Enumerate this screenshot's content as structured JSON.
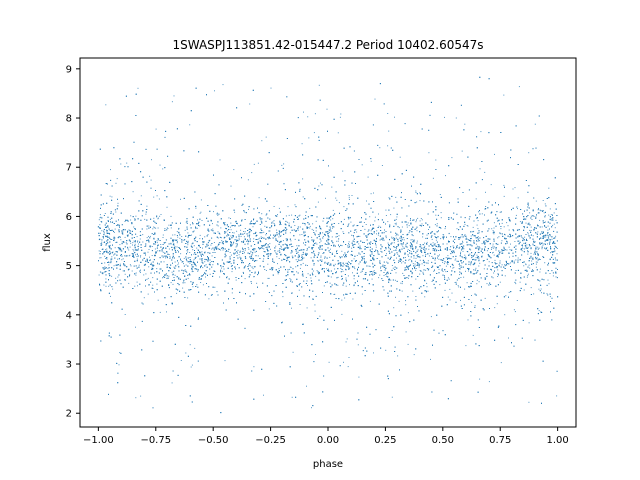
{
  "chart_data": {
    "type": "scatter",
    "title": "1SWASPJ113851.42-015447.2 Period 10402.60547s",
    "xlabel": "phase",
    "ylabel": "flux",
    "xlim": [
      -1.08,
      1.08
    ],
    "ylim": [
      1.72,
      9.22
    ],
    "xticks": [
      -1.0,
      -0.75,
      -0.5,
      -0.25,
      0.0,
      0.25,
      0.5,
      0.75,
      1.0
    ],
    "xtick_labels": [
      "−1.00",
      "−0.75",
      "−0.50",
      "−0.25",
      "0.00",
      "0.25",
      "0.50",
      "0.75",
      "1.00"
    ],
    "yticks": [
      2,
      3,
      4,
      5,
      6,
      7,
      8,
      9
    ],
    "ytick_labels": [
      "2",
      "3",
      "4",
      "5",
      "6",
      "7",
      "8",
      "9"
    ],
    "grid": false,
    "point_color": "#1f77b4",
    "series": [
      {
        "x_range": [
          -1.0,
          1.0
        ],
        "y_range": [
          2.0,
          8.9
        ],
        "points": [
          [
            -1.0,
            5.45
          ],
          [
            -0.9,
            5.42
          ],
          [
            -0.8,
            5.35
          ],
          [
            -0.7,
            5.25
          ],
          [
            -0.6,
            5.2
          ],
          [
            -0.5,
            5.3
          ],
          [
            -0.4,
            5.4
          ],
          [
            -0.3,
            5.45
          ],
          [
            -0.2,
            5.42
          ],
          [
            -0.1,
            5.32
          ],
          [
            0.0,
            5.25
          ],
          [
            0.1,
            5.22
          ],
          [
            0.2,
            5.3
          ],
          [
            0.3,
            5.38
          ],
          [
            0.4,
            5.3
          ],
          [
            0.5,
            5.2
          ],
          [
            0.6,
            5.25
          ],
          [
            0.7,
            5.35
          ],
          [
            0.8,
            5.42
          ],
          [
            0.9,
            5.45
          ],
          [
            1.0,
            5.45
          ]
        ]
      }
    ]
  }
}
